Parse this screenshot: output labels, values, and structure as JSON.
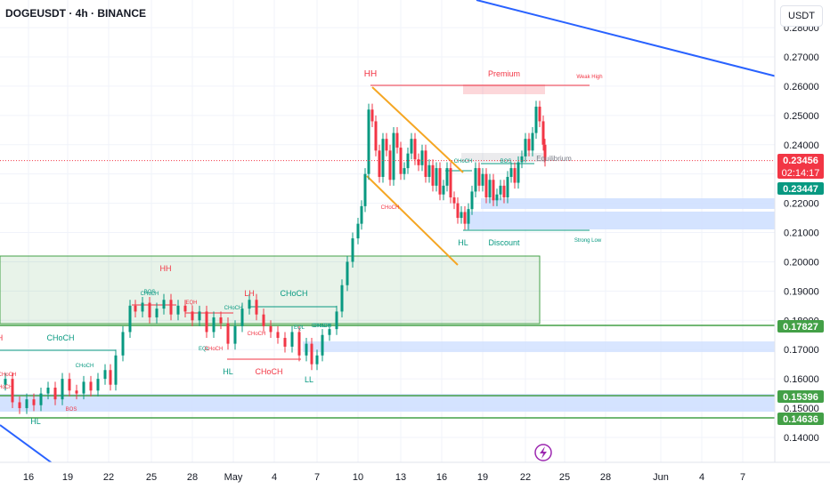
{
  "header": {
    "symbol_line": "DOGEUSDT · 4h · BINANCE"
  },
  "currency": "USDT",
  "colors": {
    "bull": "#089981",
    "bear": "#f23645",
    "green_line": "#43a047",
    "blue_zone": "#cfe0ff",
    "orange": "#f5a623",
    "trend_blue": "#2962ff"
  },
  "y_axis": {
    "ticks": [
      "0.28000",
      "0.27000",
      "0.26000",
      "0.25000",
      "0.24000",
      "0.23000",
      "0.22000",
      "0.21000",
      "0.20000",
      "0.19000",
      "0.18000",
      "0.17000",
      "0.16000",
      "0.15000",
      "0.14000"
    ]
  },
  "x_axis": {
    "ticks": [
      "16",
      "19",
      "22",
      "25",
      "28",
      "May",
      "4",
      "7",
      "10",
      "13",
      "16",
      "19",
      "22",
      "25",
      "28",
      "Jun",
      "4",
      "7"
    ]
  },
  "price_tags": [
    {
      "label": "0.23456",
      "sub": "02:14:17",
      "color": "#f23645"
    },
    {
      "label": "0.23447",
      "sub": "",
      "color": "#089981"
    },
    {
      "label": "0.17827",
      "sub": "",
      "color": "#43a047"
    },
    {
      "label": "0.15396",
      "sub": "",
      "color": "#43a047"
    },
    {
      "label": "0.14636",
      "sub": "",
      "color": "#43a047"
    }
  ],
  "annotations": [
    {
      "text": "HH",
      "color": "#f23645"
    },
    {
      "text": "Premium",
      "color": "#f23645"
    },
    {
      "text": "Weak High",
      "color": "#f23645"
    },
    {
      "text": "Equilibrium",
      "color": "#787b86"
    },
    {
      "text": "HL",
      "color": "#089981"
    },
    {
      "text": "Discount",
      "color": "#089981"
    },
    {
      "text": "Strong Low",
      "color": "#089981"
    },
    {
      "text": "CHoCH",
      "color": "#089981"
    },
    {
      "text": "CHoCH",
      "color": "#f23645"
    },
    {
      "text": "BOS",
      "color": "#089981"
    },
    {
      "text": "HH",
      "color": "#f23645"
    },
    {
      "text": "LH",
      "color": "#f23645"
    },
    {
      "text": "CHoCH",
      "color": "#089981"
    },
    {
      "text": "EQH",
      "color": "#f23645"
    },
    {
      "text": "CHoCH",
      "color": "#089981"
    },
    {
      "text": "EQL",
      "color": "#089981"
    },
    {
      "text": "CHoCH",
      "color": "#f23645"
    },
    {
      "text": "CHoCH",
      "color": "#f23645"
    },
    {
      "text": "HL",
      "color": "#089981"
    },
    {
      "text": "CHoCH",
      "color": "#f23645"
    },
    {
      "text": "LL",
      "color": "#089981"
    },
    {
      "text": "CHoCH",
      "color": "#089981"
    },
    {
      "text": "CHoCH",
      "color": "#089981"
    },
    {
      "text": "HL",
      "color": "#089981"
    },
    {
      "text": "BOS",
      "color": "#f23645"
    },
    {
      "text": "H",
      "color": "#f23645"
    },
    {
      "text": "CHoCH",
      "color": "#089981"
    },
    {
      "text": "EQL",
      "color": "#089981"
    },
    {
      "text": "CHoCH",
      "color": "#089981"
    },
    {
      "text": "CHoCH",
      "color": "#089981"
    },
    {
      "text": "BOS",
      "color": "#089981"
    },
    {
      "text": "CHoCH",
      "color": "#f23645"
    },
    {
      "text": "CHoCH",
      "color": "#f23645"
    }
  ],
  "chart_data": {
    "type": "candlestick",
    "symbol": "DOGEUSDT",
    "interval": "4h",
    "exchange": "BINANCE",
    "last_price": 0.23456,
    "countdown": "02:14:17",
    "ylim": [
      0.135,
      0.285
    ],
    "path_points": [
      [
        0.158,
        0
      ],
      [
        0.16,
        6
      ],
      [
        0.152,
        14
      ],
      [
        0.15,
        22
      ],
      [
        0.153,
        30
      ],
      [
        0.151,
        38
      ],
      [
        0.155,
        46
      ],
      [
        0.157,
        54
      ],
      [
        0.153,
        62
      ],
      [
        0.16,
        70
      ],
      [
        0.156,
        78
      ],
      [
        0.155,
        86
      ],
      [
        0.159,
        94
      ],
      [
        0.156,
        102
      ],
      [
        0.16,
        110
      ],
      [
        0.163,
        118
      ],
      [
        0.158,
        124
      ],
      [
        0.168,
        130
      ],
      [
        0.176,
        138
      ],
      [
        0.185,
        146
      ],
      [
        0.183,
        152
      ],
      [
        0.186,
        160
      ],
      [
        0.181,
        168
      ],
      [
        0.184,
        176
      ],
      [
        0.187,
        184
      ],
      [
        0.182,
        192
      ],
      [
        0.185,
        200
      ],
      [
        0.183,
        208
      ],
      [
        0.18,
        216
      ],
      [
        0.183,
        224
      ],
      [
        0.176,
        232
      ],
      [
        0.181,
        240
      ],
      [
        0.179,
        248
      ],
      [
        0.172,
        256
      ],
      [
        0.178,
        264
      ],
      [
        0.184,
        272
      ],
      [
        0.187,
        280
      ],
      [
        0.182,
        288
      ],
      [
        0.178,
        296
      ],
      [
        0.176,
        304
      ],
      [
        0.174,
        312
      ],
      [
        0.171,
        320
      ],
      [
        0.176,
        328
      ],
      [
        0.168,
        336
      ],
      [
        0.172,
        344
      ],
      [
        0.165,
        350
      ],
      [
        0.168,
        356
      ],
      [
        0.175,
        362
      ],
      [
        0.177,
        370
      ],
      [
        0.183,
        378
      ],
      [
        0.192,
        384
      ],
      [
        0.2,
        390
      ],
      [
        0.208,
        396
      ],
      [
        0.213,
        402
      ],
      [
        0.219,
        406
      ],
      [
        0.23,
        410
      ],
      [
        0.252,
        414
      ],
      [
        0.248,
        418
      ],
      [
        0.238,
        422
      ],
      [
        0.229,
        426
      ],
      [
        0.242,
        430
      ],
      [
        0.238,
        434
      ],
      [
        0.228,
        438
      ],
      [
        0.244,
        442
      ],
      [
        0.239,
        446
      ],
      [
        0.23,
        450
      ],
      [
        0.232,
        454
      ],
      [
        0.237,
        458
      ],
      [
        0.242,
        462
      ],
      [
        0.235,
        466
      ],
      [
        0.233,
        470
      ],
      [
        0.238,
        474
      ],
      [
        0.229,
        478
      ],
      [
        0.233,
        482
      ],
      [
        0.226,
        486
      ],
      [
        0.232,
        490
      ],
      [
        0.223,
        494
      ],
      [
        0.226,
        498
      ],
      [
        0.232,
        502
      ],
      [
        0.222,
        506
      ],
      [
        0.22,
        510
      ],
      [
        0.215,
        514
      ],
      [
        0.217,
        518
      ],
      [
        0.213,
        522
      ],
      [
        0.218,
        526
      ],
      [
        0.224,
        530
      ],
      [
        0.232,
        534
      ],
      [
        0.226,
        538
      ],
      [
        0.23,
        542
      ],
      [
        0.222,
        546
      ],
      [
        0.228,
        550
      ],
      [
        0.221,
        554
      ],
      [
        0.223,
        558
      ],
      [
        0.226,
        562
      ],
      [
        0.222,
        566
      ],
      [
        0.229,
        570
      ],
      [
        0.232,
        574
      ],
      [
        0.227,
        578
      ],
      [
        0.234,
        582
      ],
      [
        0.236,
        586
      ],
      [
        0.242,
        590
      ],
      [
        0.238,
        594
      ],
      [
        0.244,
        598
      ],
      [
        0.253,
        602
      ],
      [
        0.248,
        606
      ],
      [
        0.24,
        610
      ],
      [
        0.23456,
        612
      ]
    ],
    "current_price_line": 0.23456
  }
}
